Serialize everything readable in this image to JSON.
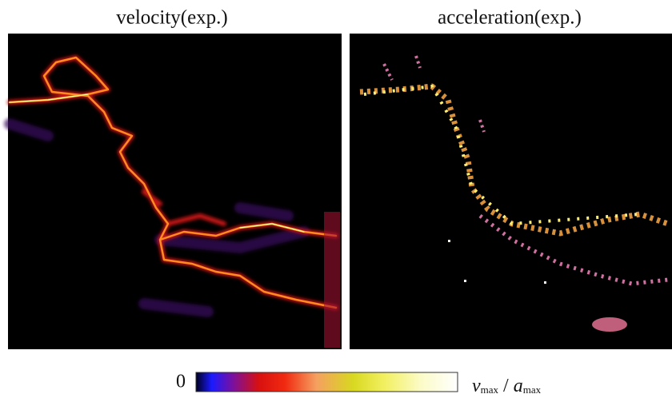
{
  "panels": [
    {
      "title": "velocity(exp.)"
    },
    {
      "title": "acceleration(exp.)"
    }
  ],
  "colorbar": {
    "min_label": "0",
    "max_label": {
      "v": "v",
      "v_sub": "max",
      "sep": "/",
      "a": "a",
      "a_sub": "max"
    }
  }
}
